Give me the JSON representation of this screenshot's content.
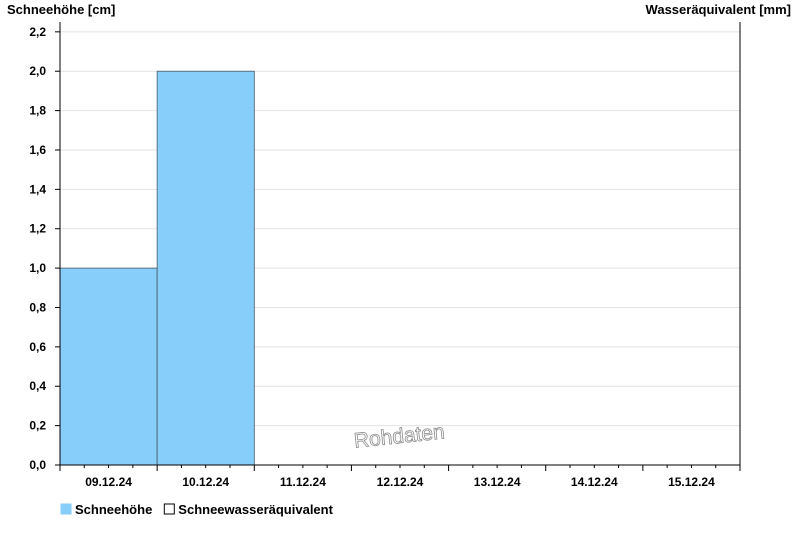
{
  "chart_data": {
    "type": "bar",
    "left_axis_label": "Schneehöhe [cm]",
    "right_axis_label": "Wasseräquivalent [mm]",
    "categories": [
      "09.12.24",
      "10.12.24",
      "11.12.24",
      "12.12.24",
      "13.12.24",
      "14.12.24",
      "15.12.24"
    ],
    "y_ticks": [
      "0,0",
      "0,2",
      "0,4",
      "0,6",
      "0,8",
      "1,0",
      "1,2",
      "1,4",
      "1,6",
      "1,8",
      "2,0",
      "2,2"
    ],
    "ylim": [
      0,
      2.25
    ],
    "grid": true,
    "legend_placement": "bottom-left",
    "series": [
      {
        "name": "Schneehöhe",
        "axis": "left",
        "color": "#87cefa",
        "values": [
          1.0,
          2.0,
          null,
          null,
          null,
          null,
          null
        ]
      },
      {
        "name": "Schneewasseräquivalent",
        "axis": "right",
        "color": "#ffffff",
        "values": [
          null,
          null,
          null,
          null,
          null,
          null,
          null
        ]
      }
    ],
    "watermark": "Rohdaten"
  }
}
